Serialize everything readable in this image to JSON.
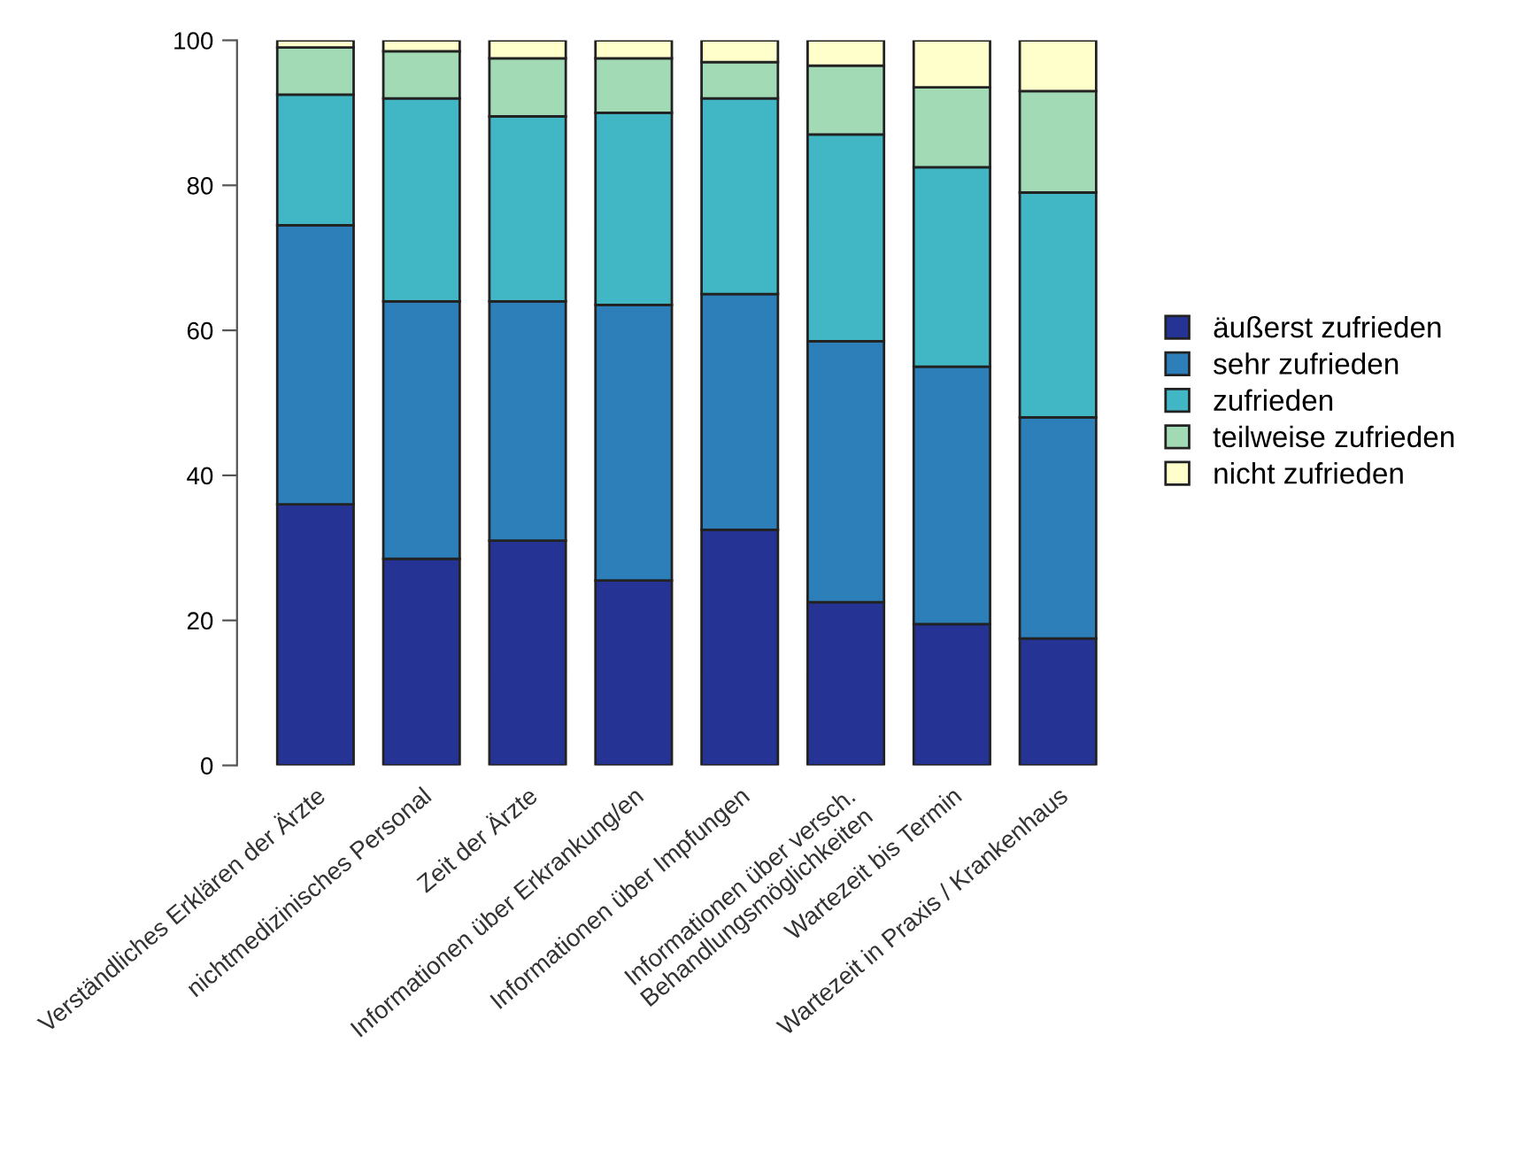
{
  "chart_data": {
    "type": "bar",
    "stacked": true,
    "categories": [
      "Verständliches Erklären der Ärzte",
      "nichtmedizinisches Personal",
      "Zeit der Ärzte",
      "Informationen über Erkrankung/en",
      "Informationen über Impfungen",
      "Informationen über versch.\nBehandlungsmöglichkeiten",
      "Wartezeit bis Termin",
      "Wartezeit in Praxis / Krankenhaus"
    ],
    "series": [
      {
        "name": "äußerst zufrieden",
        "color": "#253494",
        "values": [
          36,
          28.5,
          31,
          25.5,
          32.5,
          22.5,
          19.5,
          17.5
        ]
      },
      {
        "name": "sehr zufrieden",
        "color": "#2c7fb8",
        "values": [
          38.5,
          35.5,
          33,
          38,
          32.5,
          36,
          35.5,
          30.5
        ]
      },
      {
        "name": "zufrieden",
        "color": "#41b6c4",
        "values": [
          18,
          28,
          25.5,
          26.5,
          27,
          28.5,
          27.5,
          31
        ]
      },
      {
        "name": "teilweise zufrieden",
        "color": "#a1dab4",
        "values": [
          6.5,
          6.5,
          8,
          7.5,
          5,
          9.5,
          11,
          14
        ]
      },
      {
        "name": "nicht zufrieden",
        "color": "#ffffcc",
        "values": [
          1,
          1.5,
          2.5,
          2.5,
          3,
          3.5,
          6.5,
          7
        ]
      }
    ],
    "ylim": [
      0,
      100
    ],
    "yticks": [
      0,
      20,
      40,
      60,
      80,
      100
    ],
    "grid": false,
    "legend": "right"
  }
}
